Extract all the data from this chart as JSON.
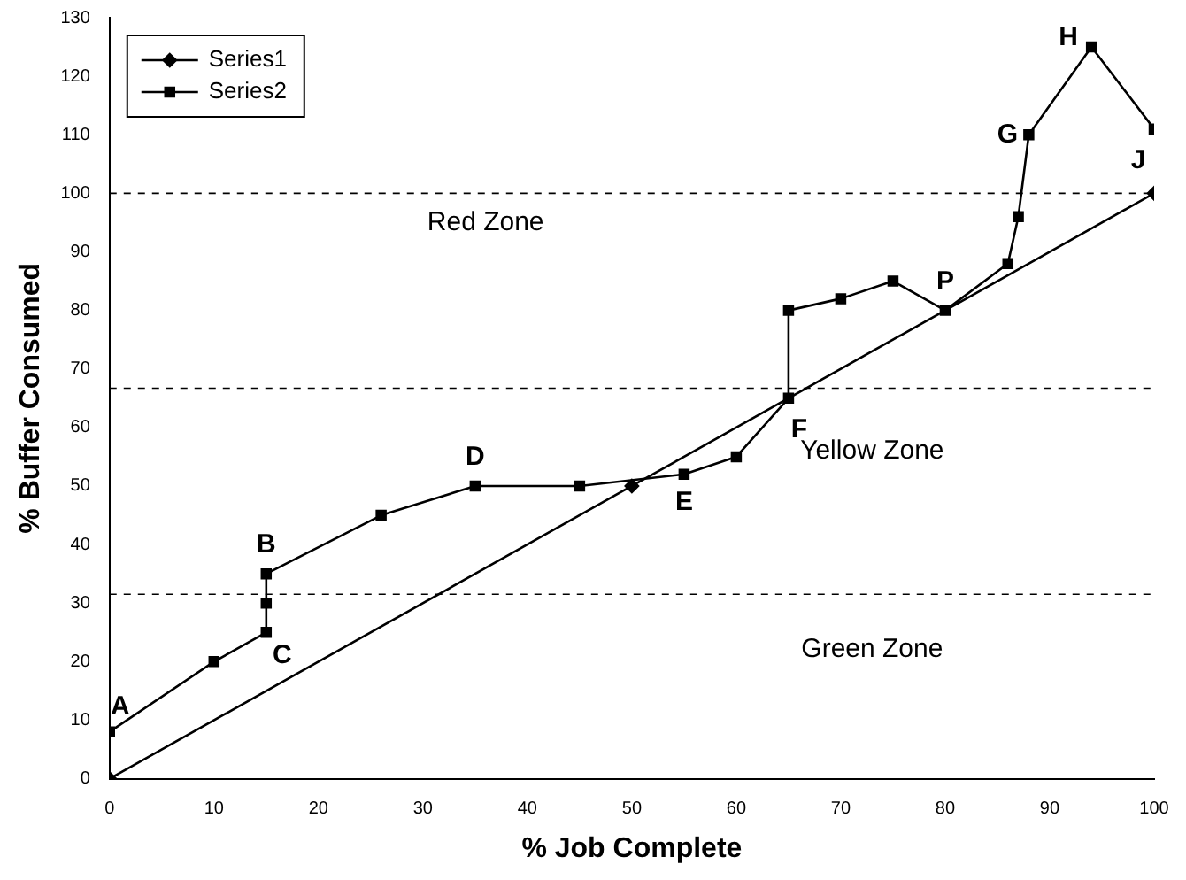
{
  "chart_data": {
    "type": "line",
    "xlabel": "% Job Complete",
    "ylabel": "% Buffer Consumed",
    "xlim": [
      0,
      100
    ],
    "xticks": [
      0,
      10,
      20,
      30,
      40,
      50,
      60,
      70,
      80,
      90,
      100
    ],
    "ylim": [
      0,
      130
    ],
    "yticks": [
      0,
      10,
      20,
      30,
      40,
      50,
      60,
      70,
      80,
      90,
      100,
      110,
      120,
      130
    ],
    "grid": false,
    "legend": "top left",
    "line_style": "solid",
    "series": [
      {
        "name": "Series1",
        "color": "#000000",
        "marker": "diamond",
        "x": [
          0,
          50,
          100
        ],
        "values": [
          0,
          50,
          100
        ]
      },
      {
        "name": "Series2",
        "color": "#000000",
        "marker": "square",
        "x": [
          0,
          10,
          15,
          15,
          15,
          26,
          35,
          45,
          55,
          60,
          65,
          65,
          70,
          75,
          80,
          86,
          87,
          88,
          94,
          100
        ],
        "values": [
          8,
          20,
          25,
          30,
          35,
          45,
          50,
          50,
          52,
          55,
          65,
          80,
          82,
          85,
          80,
          88,
          96,
          110,
          125,
          111
        ]
      }
    ],
    "ref_lines": [
      {
        "axis": "y",
        "value": 100,
        "line_style": "dashed",
        "color": "#000000"
      },
      {
        "axis": "y",
        "value": 66.7,
        "line_style": "dashed",
        "color": "#000000"
      },
      {
        "axis": "y",
        "value": 31.5,
        "line_style": "dashed",
        "color": "#000000"
      }
    ],
    "annotations": [
      {
        "text": "A",
        "x": 0,
        "y": 8
      },
      {
        "text": "B",
        "x": 15,
        "y": 35
      },
      {
        "text": "C",
        "x": 15,
        "y": 25
      },
      {
        "text": "D",
        "x": 35,
        "y": 50
      },
      {
        "text": "E",
        "x": 55,
        "y": 52
      },
      {
        "text": "F",
        "x": 65,
        "y": 65
      },
      {
        "text": "P",
        "x": 80,
        "y": 80
      },
      {
        "text": "G",
        "x": 88,
        "y": 110
      },
      {
        "text": "H",
        "x": 94,
        "y": 125
      },
      {
        "text": "J",
        "x": 100,
        "y": 111
      },
      "Red Zone",
      "Yellow Zone",
      "Green Zone"
    ]
  }
}
